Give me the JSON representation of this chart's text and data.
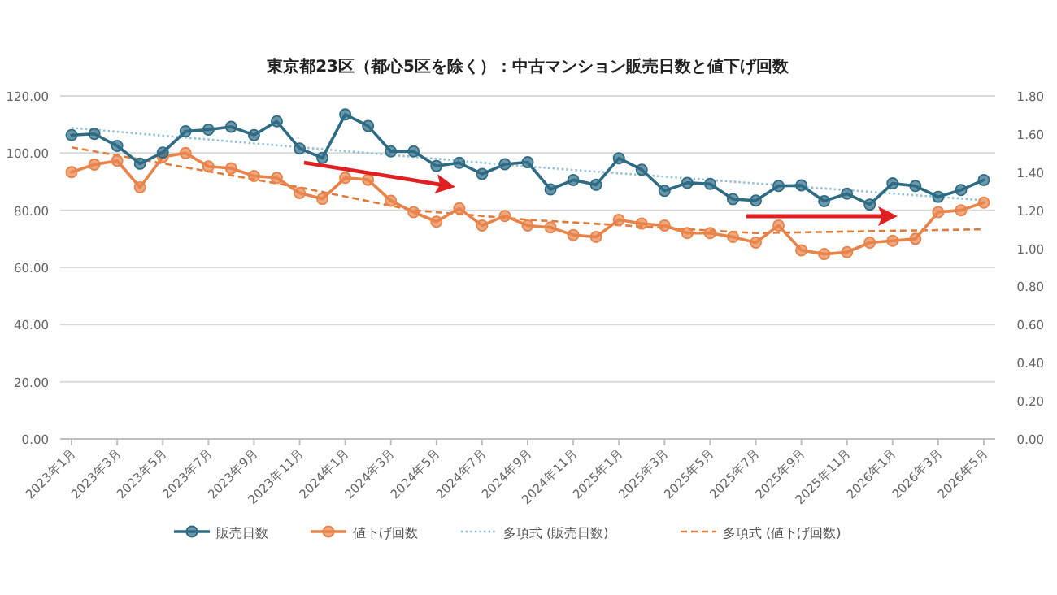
{
  "chart_data": {
    "type": "line",
    "title": "東京都23区（都心5区を除く）：中古マンション販売日数と値下げ回数",
    "x": [
      "2023-01",
      "2023-02",
      "2023-03",
      "2023-04",
      "2023-05",
      "2023-06",
      "2023-07",
      "2023-08",
      "2023-09",
      "2023-10",
      "2023-11",
      "2023-12",
      "2024-01",
      "2024-02",
      "2024-03",
      "2024-04",
      "2024-05",
      "2024-06",
      "2024-07",
      "2024-08",
      "2024-09",
      "2024-10",
      "2024-11",
      "2024-12",
      "2025-01",
      "2025-02",
      "2025-03",
      "2025-04",
      "2025-05",
      "2025-06",
      "2025-07",
      "2025-08",
      "2025-09",
      "2025-10",
      "2025-11",
      "2025-12",
      "2026-01",
      "2026-02",
      "2026-03",
      "2026-04",
      "2026-05"
    ],
    "xlim": [
      "2022-12-16",
      "2026-05-16"
    ],
    "xticks": [
      {
        "value": "2023-01",
        "label": "2023年1月"
      },
      {
        "value": "2023-03",
        "label": "2023年3月"
      },
      {
        "value": "2023-05",
        "label": "2023年5月"
      },
      {
        "value": "2023-07",
        "label": "2023年7月"
      },
      {
        "value": "2023-09",
        "label": "2023年9月"
      },
      {
        "value": "2023-11",
        "label": "2023年11月"
      },
      {
        "value": "2024-01",
        "label": "2024年1月"
      },
      {
        "value": "2024-03",
        "label": "2024年3月"
      },
      {
        "value": "2024-05",
        "label": "2024年5月"
      },
      {
        "value": "2024-07",
        "label": "2024年7月"
      },
      {
        "value": "2024-09",
        "label": "2024年9月"
      },
      {
        "value": "2024-11",
        "label": "2024年11月"
      },
      {
        "value": "2025-01",
        "label": "2025年1月"
      },
      {
        "value": "2025-03",
        "label": "2025年3月"
      },
      {
        "value": "2025-05",
        "label": "2025年5月"
      },
      {
        "value": "2025-07",
        "label": "2025年7月"
      },
      {
        "value": "2025-09",
        "label": "2025年9月"
      },
      {
        "value": "2025-11",
        "label": "2025年11月"
      },
      {
        "value": "2026-01",
        "label": "2026年1月"
      },
      {
        "value": "2026-03",
        "label": "2026年3月"
      },
      {
        "value": "2026-05",
        "label": "2026年5月"
      }
    ],
    "ylim": [
      0,
      120
    ],
    "yticks": [
      {
        "value": 0,
        "label": "0.00"
      },
      {
        "value": 20,
        "label": "20.00"
      },
      {
        "value": 40,
        "label": "40.00"
      },
      {
        "value": 60,
        "label": "60.00"
      },
      {
        "value": 80,
        "label": "80.00"
      },
      {
        "value": 100,
        "label": "100.00"
      },
      {
        "value": 120,
        "label": "120.00"
      }
    ],
    "y2lim": [
      0,
      1.8
    ],
    "y2ticks": [
      {
        "value": 0,
        "label": "0.00"
      },
      {
        "value": 0.2,
        "label": "0.20"
      },
      {
        "value": 0.4,
        "label": "0.40"
      },
      {
        "value": 0.6,
        "label": "0.60"
      },
      {
        "value": 0.8,
        "label": "0.80"
      },
      {
        "value": 1,
        "label": "1.00"
      },
      {
        "value": 1.2,
        "label": "1.20"
      },
      {
        "value": 1.4,
        "label": "1.40"
      },
      {
        "value": 1.6,
        "label": "1.60"
      },
      {
        "value": 1.8,
        "label": "1.80"
      }
    ],
    "grid": "y",
    "legend": "bottom",
    "series": [
      {
        "name": "販売日数",
        "color": "#2e6b85",
        "marker": "circle",
        "line_style": "solid",
        "values": [
          106.3,
          106.7,
          102.5,
          96.3,
          100.2,
          107.6,
          108.2,
          109.2,
          106.3,
          111.1,
          101.6,
          98.3,
          113.5,
          109.5,
          100.6,
          100.6,
          95.5,
          96.6,
          92.7,
          96.1,
          96.8,
          87.3,
          90.6,
          88.9,
          98.2,
          94.2,
          86.8,
          89.6,
          89.2,
          83.9,
          83.4,
          88.5,
          88.7,
          83.2,
          85.8,
          82.0,
          89.4,
          88.5,
          84.7,
          87.1,
          90.6
        ]
      },
      {
        "name": "値下げ回数",
        "color": "#e8834a",
        "marker": "circle",
        "line_style": "solid",
        "axis": "y2",
        "values": [
          1.4,
          1.44,
          1.46,
          1.32,
          1.48,
          1.5,
          1.43,
          1.42,
          1.38,
          1.37,
          1.29,
          1.26,
          1.37,
          1.36,
          1.25,
          1.19,
          1.14,
          1.21,
          1.12,
          1.17,
          1.12,
          1.11,
          1.07,
          1.06,
          1.15,
          1.13,
          1.12,
          1.08,
          1.08,
          1.06,
          1.03,
          1.12,
          0.99,
          0.97,
          0.98,
          1.03,
          1.04,
          1.05,
          1.19,
          1.2,
          1.24
        ]
      },
      {
        "name": "多項式 (販売日数)",
        "type": "line",
        "color": "#8fbfd2",
        "marker": "none",
        "line_style": "dotted",
        "x": [
          "2023-01",
          "2024-09",
          "2026-05"
        ],
        "values": [
          108.8,
          95.3,
          83.5
        ]
      },
      {
        "name": "多項式 (値下げ回数)",
        "type": "line",
        "color": "#e07b39",
        "marker": "none",
        "line_style": "dashed",
        "axis": "y2",
        "x": [
          "2023-01",
          "2023-11",
          "2024-04",
          "2024-09",
          "2025-07",
          "2026-05"
        ],
        "values": [
          1.53,
          1.32,
          1.2,
          1.15,
          1.08,
          1.1
        ]
      }
    ]
  }
}
